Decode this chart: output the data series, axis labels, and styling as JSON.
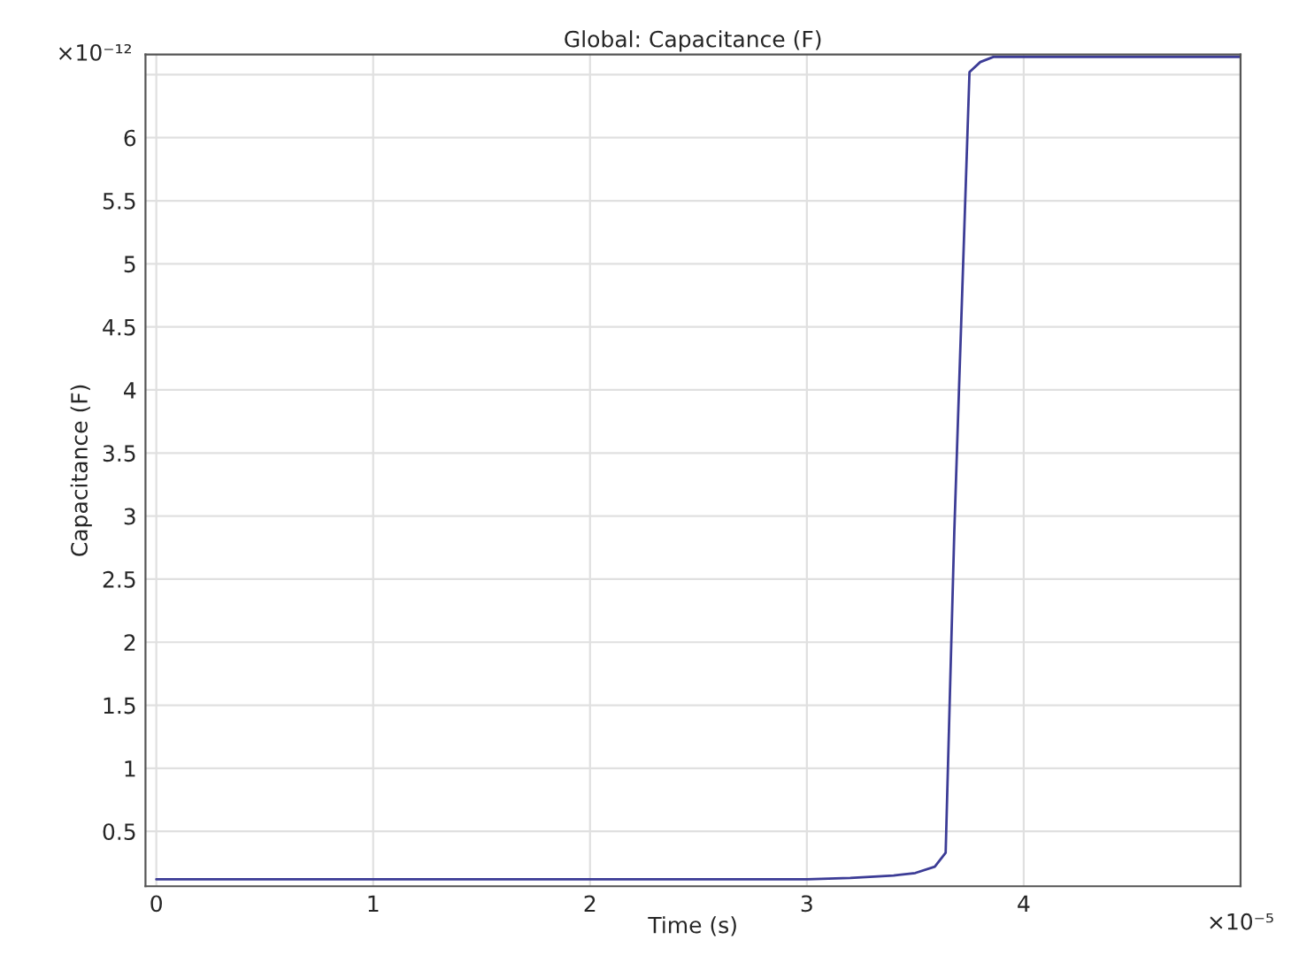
{
  "chart_data": {
    "type": "line",
    "title": "Global: Capacitance (F)",
    "xlabel": "Time (s)",
    "ylabel": "Capacitance (F)",
    "x": [
      0,
      1,
      2,
      3,
      3.2,
      3.4,
      3.5,
      3.59,
      3.64,
      3.68,
      3.75,
      3.8,
      3.86,
      4,
      5
    ],
    "series": [
      {
        "color": "#3c3c96",
        "values": [
          0.12,
          0.12,
          0.12,
          0.12,
          0.13,
          0.15,
          0.17,
          0.22,
          0.33,
          2.88,
          6.52,
          6.6,
          6.64,
          6.64,
          6.64
        ]
      }
    ],
    "xlim": [
      -0.05,
      5
    ],
    "ylim": [
      0.065,
      6.66
    ],
    "xticks": [
      0,
      1,
      2,
      3,
      4,
      {
        "value": 5,
        "label": null
      }
    ],
    "yticks": [
      0.5,
      1,
      1.5,
      2,
      2.5,
      3,
      3.5,
      4,
      4.5,
      5,
      5.5,
      6,
      {
        "value": 6.5,
        "label": null
      }
    ],
    "annotations": [
      "×10⁻¹²",
      "×10⁻⁵"
    ],
    "grid": true,
    "legend": false,
    "marker": "none",
    "line_style": "solid"
  }
}
